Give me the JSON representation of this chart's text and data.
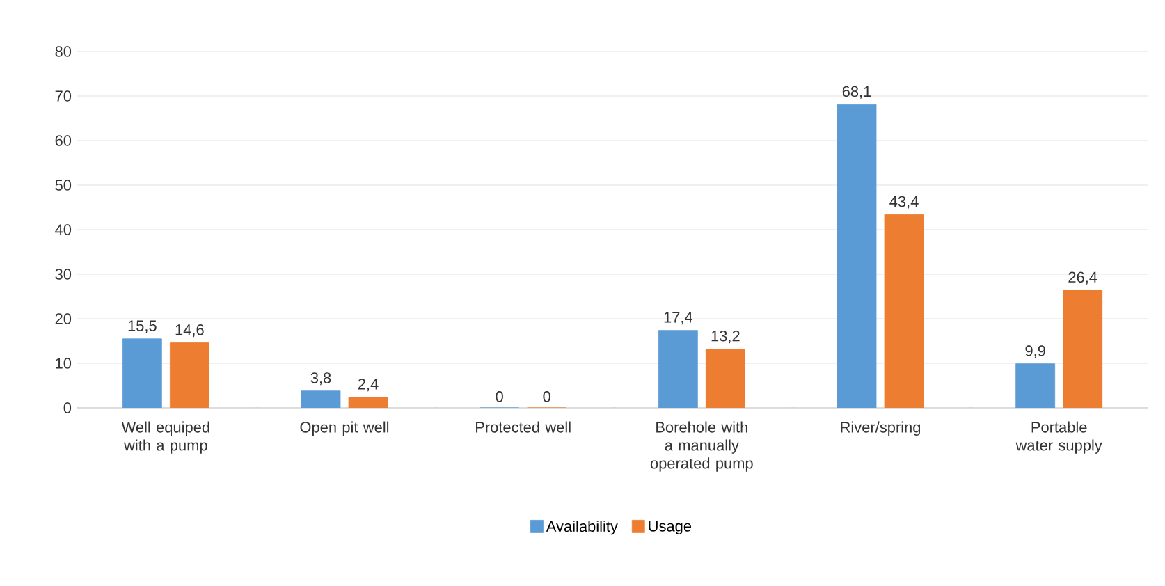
{
  "chart_data": {
    "type": "bar",
    "categories": [
      "Well equiped with a pump",
      "Open pit well",
      "Protected well",
      "Borehole with a manually operated pump",
      "River/spring",
      "Portable water supply"
    ],
    "series": [
      {
        "name": "Availability",
        "color": "#5b9bd5",
        "values": [
          15.5,
          3.8,
          0,
          17.4,
          68.1,
          9.9
        ],
        "value_labels": [
          "15,5",
          "3,8",
          "0",
          "17,4",
          "68,1",
          "9,9"
        ]
      },
      {
        "name": "Usage",
        "color": "#ed7d31",
        "values": [
          14.6,
          2.4,
          0,
          13.2,
          43.4,
          26.4
        ],
        "value_labels": [
          "14,6",
          "2,4",
          "0",
          "13,2",
          "43,4",
          "26,4"
        ]
      }
    ],
    "ylim": [
      0,
      80
    ],
    "yticks": [
      0,
      10,
      20,
      30,
      40,
      50,
      60,
      70,
      80
    ],
    "grid": "y",
    "legend": "bottom"
  }
}
